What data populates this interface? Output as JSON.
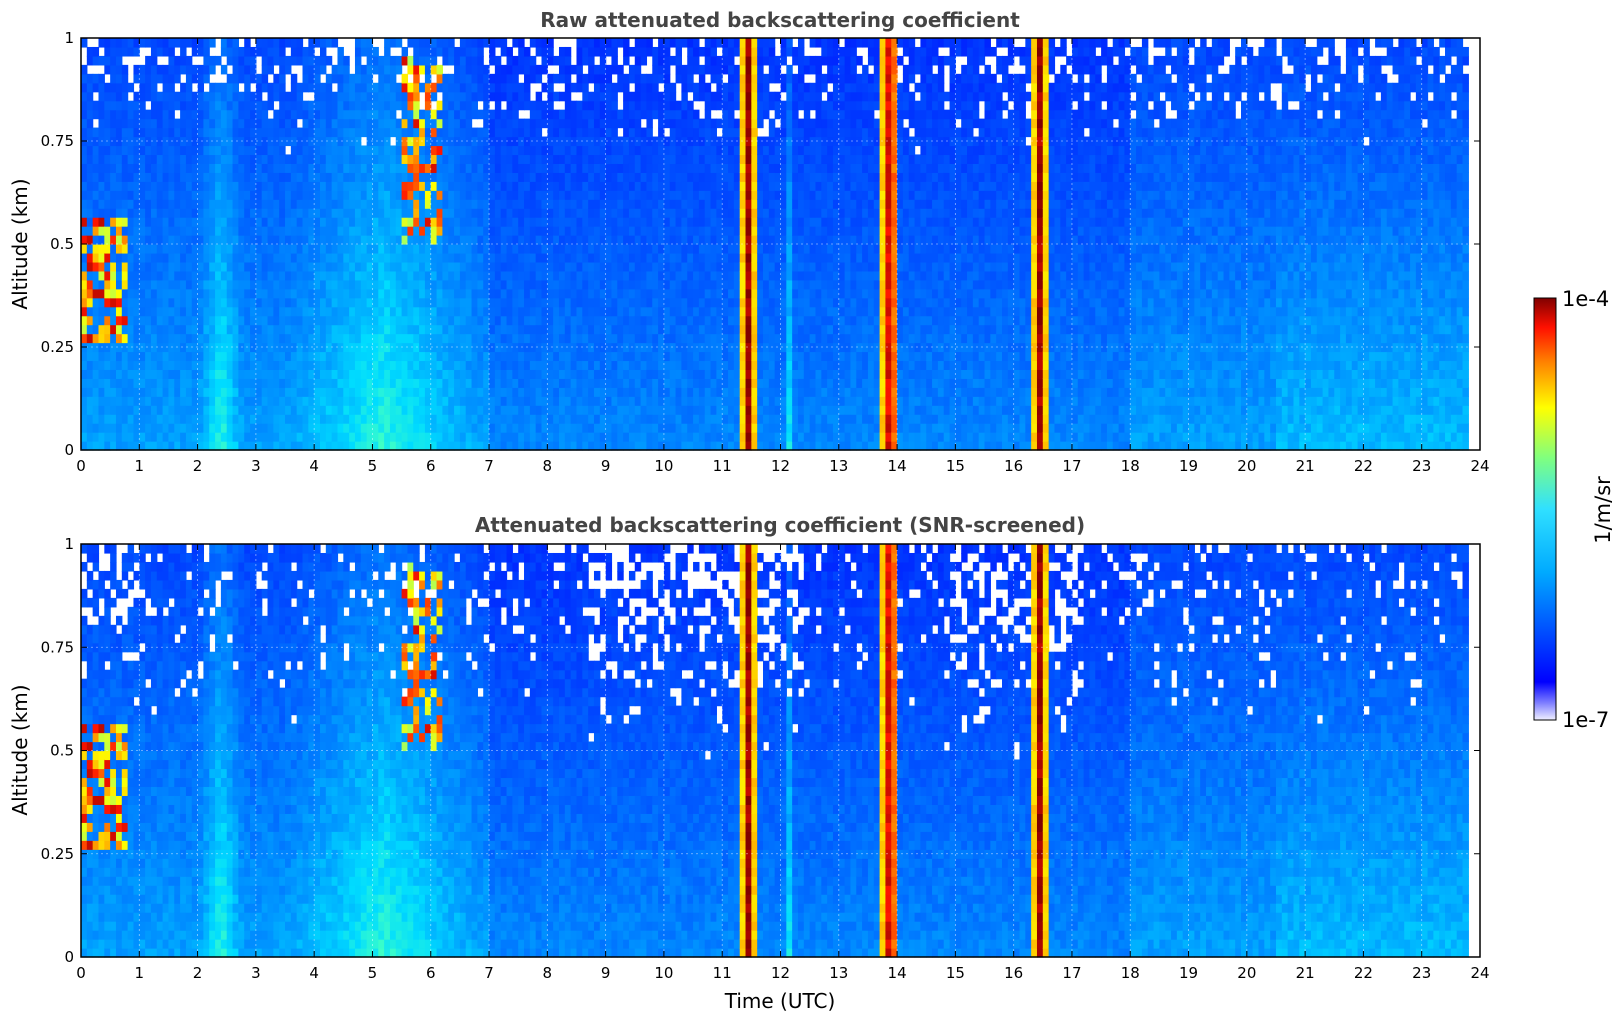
{
  "chart_data": [
    {
      "type": "heatmap",
      "title": "Raw attenuated backscattering coefficient",
      "xlabel": "",
      "ylabel": "Altitude (km)",
      "xlim": [
        0,
        24
      ],
      "ylim": [
        0,
        1
      ],
      "x_ticks": [
        "0",
        "1",
        "2",
        "3",
        "4",
        "5",
        "6",
        "7",
        "8",
        "9",
        "10",
        "11",
        "12",
        "13",
        "14",
        "15",
        "16",
        "17",
        "18",
        "19",
        "20",
        "21",
        "22",
        "23",
        "24"
      ],
      "y_ticks": [
        "0",
        "0.25",
        "0.5",
        "0.75",
        "1"
      ],
      "grid": true,
      "screened": false,
      "data_end_time": 23.8,
      "strong_columns": [
        {
          "start": 11.35,
          "end": 11.55
        },
        {
          "start": 13.75,
          "end": 14.0
        },
        {
          "start": 16.35,
          "end": 16.55
        }
      ],
      "low_cloud": {
        "start": 0.0,
        "end": 0.75,
        "bottom": 0.27,
        "top": 0.57
      },
      "elevated_cloud": {
        "start": 5.5,
        "end": 6.2,
        "bottom": 0.5,
        "top": 0.95
      },
      "enhanced_aerosol": [
        {
          "start": 2.0,
          "end": 2.8
        },
        {
          "start": 3.5,
          "end": 6.9
        },
        {
          "start": 12.05,
          "end": 12.25
        }
      ]
    },
    {
      "type": "heatmap",
      "title": "Attenuated backscattering coefficient (SNR-screened)",
      "xlabel": "Time (UTC)",
      "ylabel": "Altitude (km)",
      "xlim": [
        0,
        24
      ],
      "ylim": [
        0,
        1
      ],
      "x_ticks": [
        "0",
        "1",
        "2",
        "3",
        "4",
        "5",
        "6",
        "7",
        "8",
        "9",
        "10",
        "11",
        "12",
        "13",
        "14",
        "15",
        "16",
        "17",
        "18",
        "19",
        "20",
        "21",
        "22",
        "23",
        "24"
      ],
      "y_ticks": [
        "0",
        "0.25",
        "0.5",
        "0.75",
        "1"
      ],
      "grid": true,
      "screened": true,
      "data_end_time": 23.8,
      "strong_columns": [
        {
          "start": 11.35,
          "end": 11.55
        },
        {
          "start": 13.75,
          "end": 14.0
        },
        {
          "start": 16.35,
          "end": 16.55
        }
      ],
      "low_cloud": {
        "start": 0.0,
        "end": 0.75,
        "bottom": 0.27,
        "top": 0.57
      },
      "elevated_cloud": {
        "start": 5.5,
        "end": 6.2,
        "bottom": 0.5,
        "top": 0.95
      },
      "enhanced_aerosol": [
        {
          "start": 2.0,
          "end": 2.8
        },
        {
          "start": 3.5,
          "end": 6.9
        },
        {
          "start": 12.05,
          "end": 12.25
        }
      ]
    }
  ],
  "colorbar": {
    "label": "1/m/sr",
    "max_label": "1e-4",
    "min_label": "1e-7",
    "scale": "log",
    "colormap": "jet"
  }
}
